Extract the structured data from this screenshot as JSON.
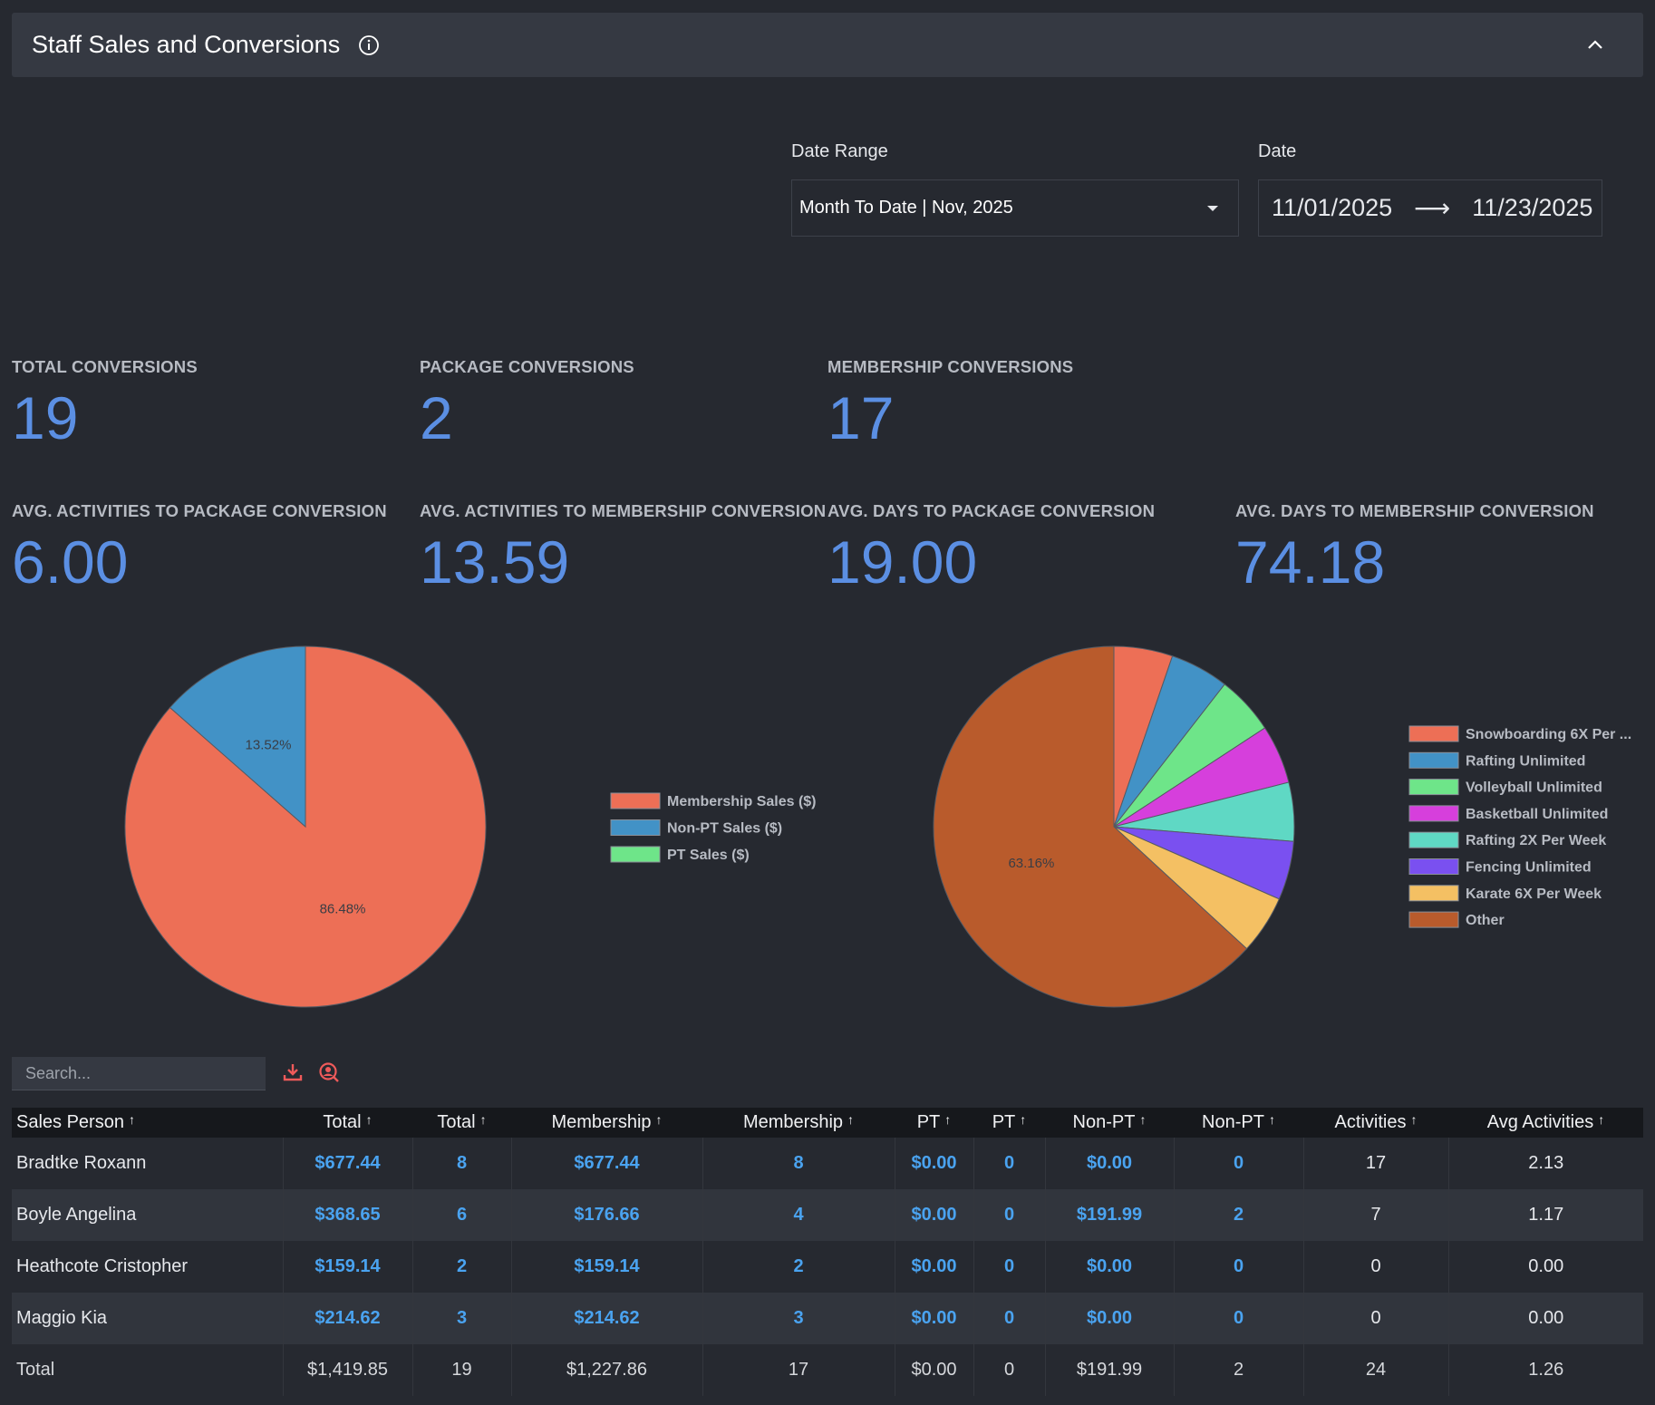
{
  "header": {
    "title": "Staff Sales and Conversions"
  },
  "filters": {
    "date_range_label": "Date Range",
    "date_range_value": "Month To Date | Nov, 2025",
    "date_label": "Date",
    "date_start": "11/01/2025",
    "date_end": "11/23/2025"
  },
  "stats": [
    {
      "label": "TOTAL CONVERSIONS",
      "value": "19"
    },
    {
      "label": "PACKAGE CONVERSIONS",
      "value": "2"
    },
    {
      "label": "MEMBERSHIP CONVERSIONS",
      "value": "17"
    },
    {
      "label": "AVG. ACTIVITIES TO PACKAGE CONVERSION",
      "value": "6.00"
    },
    {
      "label": "AVG. ACTIVITIES TO MEMBERSHIP CONVERSION",
      "value": "13.59"
    },
    {
      "label": "AVG. DAYS TO PACKAGE CONVERSION",
      "value": "19.00"
    },
    {
      "label": "AVG. DAYS TO MEMBERSHIP CONVERSION",
      "value": "74.18"
    }
  ],
  "chart_data": [
    {
      "type": "pie",
      "labels": [
        "Membership Sales ($)",
        "Non-PT Sales ($)",
        "PT Sales ($)"
      ],
      "values": [
        86.48,
        13.52,
        0
      ],
      "colors": [
        "#ed6f56",
        "#4292c6",
        "#6ee589"
      ],
      "data_labels": [
        "86.48%",
        "13.52%",
        ""
      ],
      "legend_position": "right"
    },
    {
      "type": "pie",
      "labels": [
        "Snowboarding 6X Per ...",
        "Rafting Unlimited",
        "Volleyball Unlimited",
        "Basketball Unlimited",
        "Rafting 2X Per Week",
        "Fencing Unlimited",
        "Karate 6X Per Week",
        "Other"
      ],
      "values": [
        5.26,
        5.26,
        5.26,
        5.26,
        5.26,
        5.26,
        5.26,
        63.16
      ],
      "colors": [
        "#ed6f56",
        "#4292c6",
        "#6ee589",
        "#d63fdc",
        "#5fd8c4",
        "#7a50f0",
        "#f4c063",
        "#b95b2c"
      ],
      "data_labels": [
        "",
        "",
        "",
        "",
        "",
        "",
        "",
        "63.16%"
      ],
      "legend_position": "right"
    }
  ],
  "toolbar": {
    "search_placeholder": "Search..."
  },
  "table": {
    "columns": [
      "Sales Person",
      "Total",
      "Total",
      "Membership",
      "Membership",
      "PT",
      "PT",
      "Non-PT",
      "Non-PT",
      "Activities",
      "Avg Activities"
    ],
    "rows": [
      [
        "Bradtke Roxann",
        "$677.44",
        "8",
        "$677.44",
        "8",
        "$0.00",
        "0",
        "$0.00",
        "0",
        "17",
        "2.13"
      ],
      [
        "Boyle Angelina",
        "$368.65",
        "6",
        "$176.66",
        "4",
        "$0.00",
        "0",
        "$191.99",
        "2",
        "7",
        "1.17"
      ],
      [
        "Heathcote Cristopher",
        "$159.14",
        "2",
        "$159.14",
        "2",
        "$0.00",
        "0",
        "$0.00",
        "0",
        "0",
        "0.00"
      ],
      [
        "Maggio Kia",
        "$214.62",
        "3",
        "$214.62",
        "3",
        "$0.00",
        "0",
        "$0.00",
        "0",
        "0",
        "0.00"
      ]
    ],
    "total_row": [
      "Total",
      "$1,419.85",
      "19",
      "$1,227.86",
      "17",
      "$0.00",
      "0",
      "$191.99",
      "2",
      "24",
      "1.26"
    ]
  }
}
